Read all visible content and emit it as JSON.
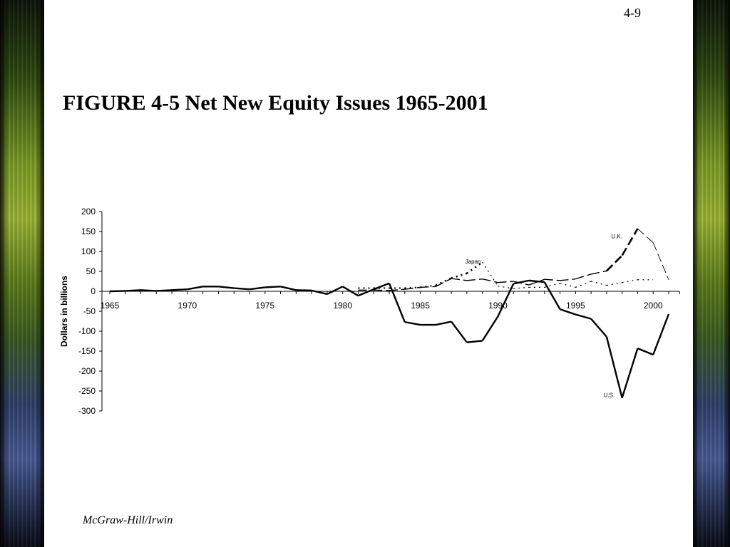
{
  "slide": {
    "page_number": "4-9",
    "footer": "McGraw-Hill/Irwin"
  },
  "chart_data": {
    "type": "line",
    "title": "FIGURE 4-5 Net New Equity Issues 1965-2001",
    "xlabel": "",
    "ylabel": "Dollars in billions",
    "xlim": [
      1965,
      2001
    ],
    "ylim": [
      -300,
      200
    ],
    "x_ticks": [
      1965,
      1970,
      1975,
      1980,
      1985,
      1990,
      1995,
      2000
    ],
    "y_ticks": [
      200,
      150,
      100,
      50,
      0,
      -50,
      -100,
      -150,
      -200,
      -250,
      -300
    ],
    "grid": false,
    "legend": "none",
    "series": [
      {
        "name": "U.S.",
        "style": "solid",
        "points": [
          [
            1965,
            0
          ],
          [
            1966,
            1
          ],
          [
            1967,
            3
          ],
          [
            1968,
            1
          ],
          [
            1969,
            3
          ],
          [
            1970,
            5
          ],
          [
            1971,
            12
          ],
          [
            1972,
            12
          ],
          [
            1973,
            8
          ],
          [
            1974,
            5
          ],
          [
            1975,
            10
          ],
          [
            1976,
            12
          ],
          [
            1977,
            3
          ],
          [
            1978,
            2
          ],
          [
            1979,
            -7
          ],
          [
            1980,
            12
          ],
          [
            1981,
            -11
          ],
          [
            1982,
            5
          ],
          [
            1983,
            20
          ],
          [
            1984,
            -77
          ],
          [
            1985,
            -84
          ],
          [
            1986,
            -84
          ],
          [
            1987,
            -76
          ],
          [
            1988,
            -128
          ],
          [
            1989,
            -124
          ],
          [
            1990,
            -63
          ],
          [
            1991,
            19
          ],
          [
            1992,
            27
          ],
          [
            1993,
            23
          ],
          [
            1994,
            -45
          ],
          [
            1995,
            -58
          ],
          [
            1996,
            -69
          ],
          [
            1997,
            -114
          ],
          [
            1998,
            -267
          ],
          [
            1999,
            -143
          ],
          [
            2000,
            -159
          ],
          [
            2001,
            -57
          ]
        ]
      },
      {
        "name": "Japan",
        "style": "dotted",
        "points": [
          [
            1981,
            8
          ],
          [
            1982,
            8
          ],
          [
            1983,
            8
          ],
          [
            1984,
            8
          ],
          [
            1985,
            10
          ],
          [
            1986,
            15
          ],
          [
            1987,
            33
          ],
          [
            1988,
            45
          ],
          [
            1989,
            73
          ],
          [
            1990,
            13
          ],
          [
            1991,
            7
          ],
          [
            1992,
            10
          ],
          [
            1993,
            10
          ],
          [
            1994,
            20
          ],
          [
            1995,
            10
          ],
          [
            1996,
            25
          ],
          [
            1997,
            15
          ],
          [
            1998,
            22
          ],
          [
            1999,
            29
          ],
          [
            2000,
            29
          ]
        ]
      },
      {
        "name": "U.K.",
        "style": "dashed",
        "points": [
          [
            1981,
            3
          ],
          [
            1982,
            3
          ],
          [
            1983,
            2
          ],
          [
            1984,
            5
          ],
          [
            1985,
            10
          ],
          [
            1986,
            12
          ],
          [
            1987,
            32
          ],
          [
            1988,
            27
          ],
          [
            1989,
            31
          ],
          [
            1990,
            22
          ],
          [
            1991,
            25
          ],
          [
            1992,
            16
          ],
          [
            1993,
            30
          ],
          [
            1994,
            27
          ],
          [
            1995,
            31
          ],
          [
            1996,
            43
          ],
          [
            1997,
            51
          ],
          [
            1998,
            90
          ],
          [
            1999,
            157
          ],
          [
            2000,
            122
          ],
          [
            2001,
            29
          ]
        ]
      }
    ],
    "annotations": [
      {
        "text": "Japan",
        "x": 1987.9,
        "y": 70
      },
      {
        "text": "U.K.",
        "x": 1997.3,
        "y": 133
      },
      {
        "text": "U.S.",
        "x": 1996.8,
        "y": -265
      }
    ]
  }
}
